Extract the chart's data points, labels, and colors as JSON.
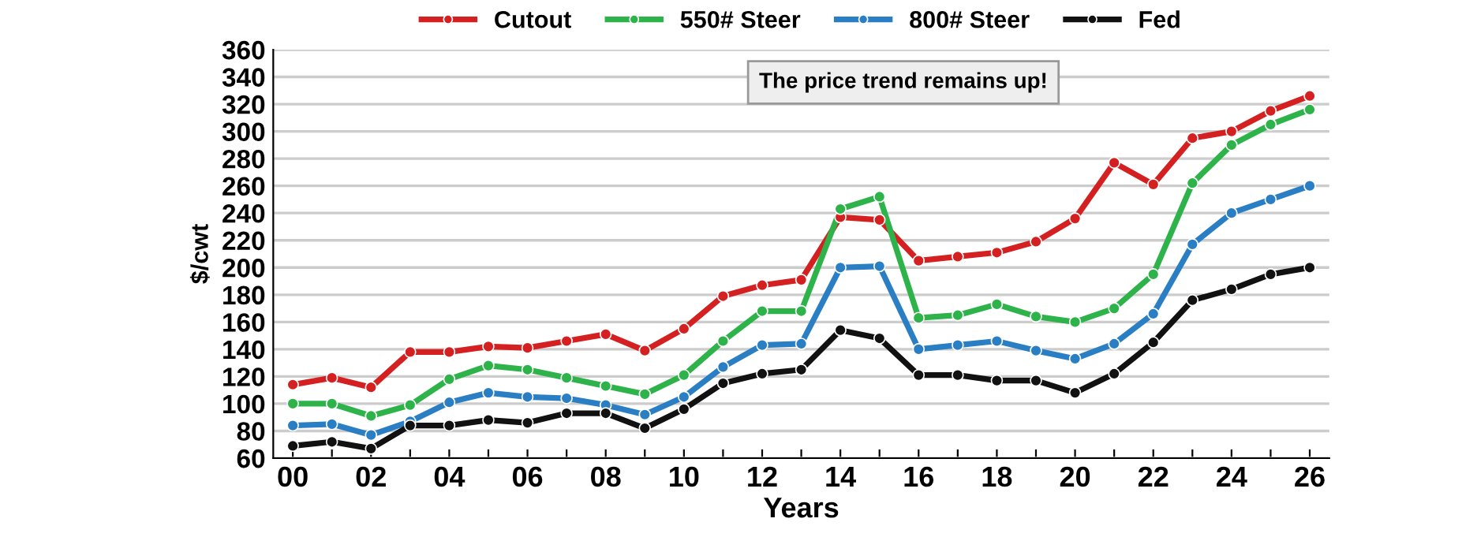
{
  "chart_data": {
    "type": "line",
    "xlabel": "Years",
    "ylabel": "$/cwt",
    "categories": [
      "00",
      null,
      "02",
      null,
      "04",
      null,
      "06",
      null,
      "08",
      null,
      "10",
      null,
      "12",
      null,
      "14",
      null,
      "16",
      null,
      "18",
      null,
      "20",
      null,
      "22",
      null,
      "24",
      null,
      "26"
    ],
    "series": [
      {
        "name": "Cutout",
        "color": "#d42020",
        "values": [
          114,
          119,
          112,
          138,
          138,
          142,
          141,
          146,
          151,
          139,
          155,
          179,
          187,
          191,
          237,
          235,
          205,
          208,
          211,
          219,
          236,
          277,
          261,
          295,
          300,
          315,
          326
        ]
      },
      {
        "name": "550# Steer",
        "color": "#2db34a",
        "values": [
          100,
          100,
          91,
          99,
          118,
          128,
          125,
          119,
          113,
          107,
          121,
          146,
          168,
          168,
          243,
          252,
          163,
          165,
          173,
          164,
          160,
          170,
          195,
          262,
          290,
          305,
          316
        ]
      },
      {
        "name": "800# Steer",
        "color": "#2a7fc4",
        "values": [
          84,
          85,
          77,
          87,
          101,
          108,
          105,
          104,
          99,
          92,
          105,
          127,
          143,
          144,
          200,
          201,
          140,
          143,
          146,
          139,
          133,
          144,
          166,
          217,
          240,
          250,
          260
        ]
      },
      {
        "name": "Fed",
        "color": "#111111",
        "values": [
          69,
          72,
          67,
          84,
          84,
          88,
          86,
          93,
          93,
          82,
          96,
          115,
          122,
          125,
          154,
          148,
          121,
          121,
          117,
          117,
          108,
          122,
          145,
          176,
          184,
          195,
          200
        ]
      }
    ],
    "ylim": [
      60,
      360
    ],
    "yticks": [
      60,
      80,
      100,
      120,
      140,
      160,
      180,
      200,
      220,
      240,
      260,
      280,
      300,
      320,
      340,
      360
    ],
    "grid": "y",
    "legend": "top",
    "marker": "circle",
    "line_style": "solid",
    "annotations": [
      "The price trend remains up!"
    ]
  }
}
